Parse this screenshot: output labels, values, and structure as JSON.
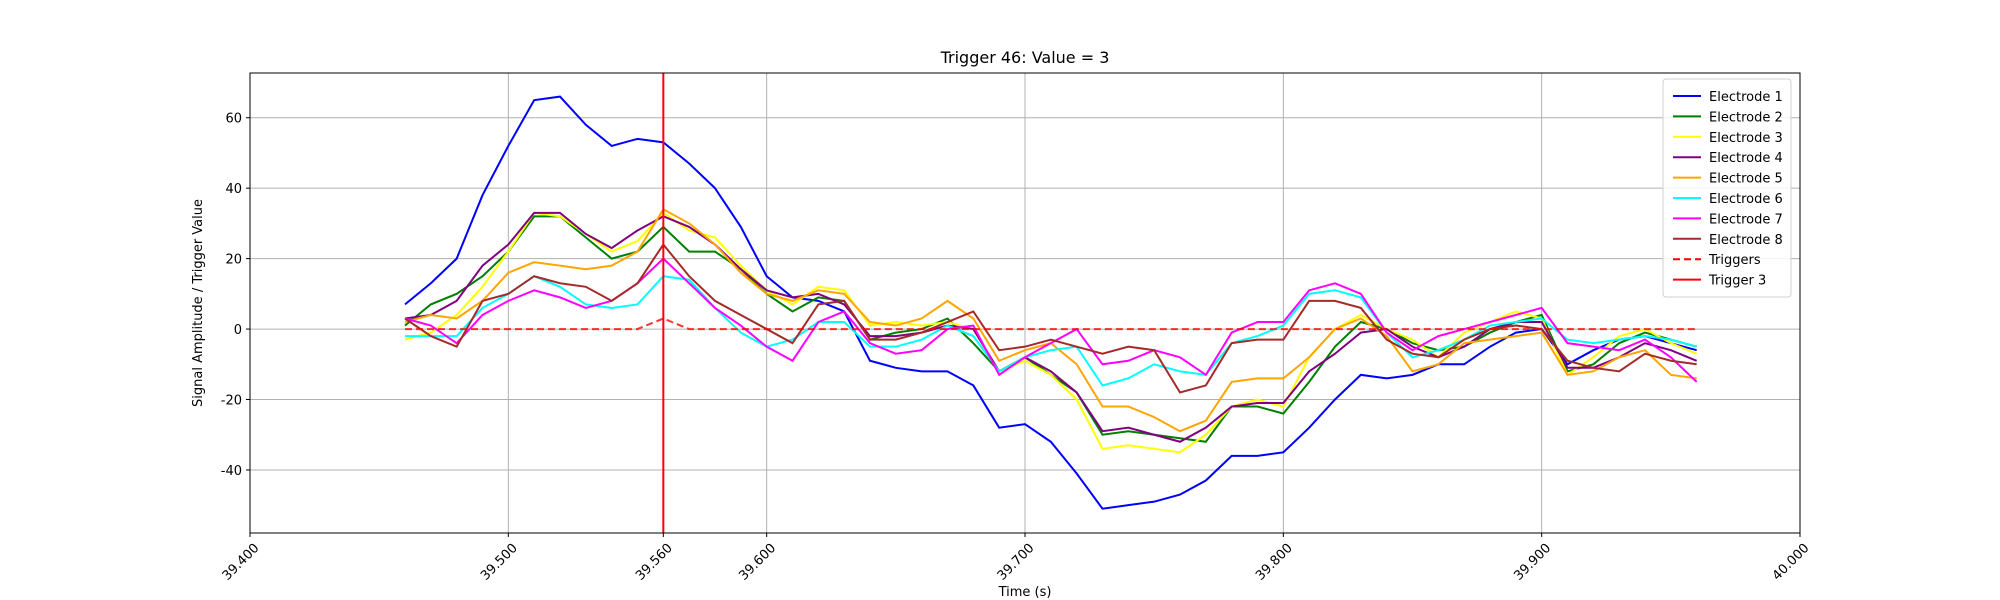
{
  "chart_data": {
    "type": "line",
    "title": "Trigger 46: Value = 3",
    "xlabel": "Time (s)",
    "ylabel": "Signal Amplitude / Trigger Value",
    "x": [
      39.46,
      39.47,
      39.48,
      39.49,
      39.5,
      39.51,
      39.52,
      39.53,
      39.54,
      39.55,
      39.56,
      39.57,
      39.58,
      39.59,
      39.6,
      39.61,
      39.62,
      39.63,
      39.64,
      39.65,
      39.66,
      39.67,
      39.68,
      39.69,
      39.7,
      39.71,
      39.72,
      39.73,
      39.74,
      39.75,
      39.76,
      39.77,
      39.78,
      39.79,
      39.8,
      39.81,
      39.82,
      39.83,
      39.84,
      39.85,
      39.86,
      39.87,
      39.88,
      39.89,
      39.9,
      39.91,
      39.92,
      39.93,
      39.94,
      39.95,
      39.96
    ],
    "series": [
      {
        "name": "Electrode 1",
        "color": "#0000ff",
        "values": [
          7,
          13,
          20,
          38,
          52,
          65,
          66,
          58,
          52,
          54,
          53,
          47,
          40,
          29,
          15,
          9,
          8,
          5,
          -9,
          -11,
          -12,
          -12,
          -16,
          -28,
          -27,
          -32,
          -41,
          -51,
          -50,
          -49,
          -47,
          -43,
          -36,
          -36,
          -35,
          -28,
          -20,
          -13,
          -14,
          -13,
          -10,
          -10,
          -5,
          -1,
          0,
          -10,
          -6,
          -3,
          -2,
          -4,
          -6
        ]
      },
      {
        "name": "Electrode 2",
        "color": "#008000",
        "values": [
          1,
          7,
          10,
          15,
          22,
          32,
          32,
          26,
          20,
          22,
          29,
          22,
          22,
          17,
          10,
          5,
          9,
          8,
          -3,
          -1,
          0,
          3,
          -4,
          -12,
          -8,
          -13,
          -18,
          -30,
          -29,
          -30,
          -31,
          -32,
          -22,
          -22,
          -24,
          -15,
          -5,
          2,
          0,
          -4,
          -6,
          -5,
          -1,
          2,
          4,
          -12,
          -10,
          -4,
          -1,
          -3,
          -5
        ]
      },
      {
        "name": "Electrode 3",
        "color": "#ffff00",
        "values": [
          -3,
          -1,
          4,
          12,
          22,
          33,
          32,
          27,
          22,
          25,
          33,
          28,
          26,
          18,
          11,
          7,
          12,
          11,
          1,
          2,
          1,
          2,
          0,
          -12,
          -9,
          -13,
          -20,
          -34,
          -33,
          -34,
          -35,
          -30,
          -22,
          -20,
          -22,
          -8,
          0,
          4,
          0,
          -3,
          -8,
          -1,
          2,
          5,
          3,
          -13,
          -8,
          -2,
          0,
          -4,
          -7
        ]
      },
      {
        "name": "Electrode 4",
        "color": "#800080",
        "values": [
          3,
          4,
          8,
          18,
          24,
          33,
          33,
          27,
          23,
          28,
          32,
          29,
          24,
          17,
          11,
          9,
          10,
          7,
          -2,
          -2,
          -1,
          1,
          0,
          -12,
          -8,
          -12,
          -18,
          -29,
          -28,
          -30,
          -32,
          -28,
          -22,
          -21,
          -21,
          -12,
          -7,
          -1,
          0,
          -5,
          -8,
          -5,
          0,
          2,
          2,
          -11,
          -11,
          -8,
          -4,
          -6,
          -9
        ]
      },
      {
        "name": "Electrode 5",
        "color": "#ffa500",
        "values": [
          2,
          4,
          3,
          8,
          16,
          19,
          18,
          17,
          18,
          22,
          34,
          30,
          24,
          16,
          10,
          8,
          11,
          10,
          2,
          1,
          3,
          8,
          3,
          -9,
          -6,
          -4,
          -10,
          -22,
          -22,
          -25,
          -29,
          -26,
          -15,
          -14,
          -14,
          -8,
          0,
          3,
          -2,
          -12,
          -10,
          -4,
          -3,
          -2,
          -1,
          -13,
          -12,
          -8,
          -6,
          -13,
          -14
        ]
      },
      {
        "name": "Electrode 6",
        "color": "#00ffff",
        "values": [
          -2,
          -2,
          -2,
          6,
          10,
          15,
          12,
          7,
          6,
          7,
          15,
          14,
          6,
          -1,
          -5,
          -3,
          2,
          2,
          -5,
          -5,
          -3,
          1,
          -2,
          -12,
          -8,
          -6,
          -5,
          -16,
          -14,
          -10,
          -12,
          -13,
          -4,
          -2,
          1,
          10,
          11,
          9,
          -1,
          -8,
          -6,
          -3,
          1,
          2,
          3,
          -3,
          -4,
          -3,
          -2,
          -3,
          -5
        ]
      },
      {
        "name": "Electrode 7",
        "color": "#ff00ff",
        "values": [
          3,
          1,
          -4,
          4,
          8,
          11,
          9,
          6,
          8,
          13,
          20,
          13,
          6,
          1,
          -5,
          -9,
          2,
          5,
          -4,
          -7,
          -6,
          0,
          1,
          -13,
          -8,
          -4,
          0,
          -10,
          -9,
          -6,
          -8,
          -13,
          -1,
          2,
          2,
          11,
          13,
          10,
          -1,
          -6,
          -2,
          0,
          2,
          4,
          6,
          -4,
          -5,
          -6,
          -3,
          -8,
          -15
        ]
      },
      {
        "name": "Electrode 8",
        "color": "#a52a2a",
        "values": [
          3,
          -2,
          -5,
          8,
          10,
          15,
          13,
          12,
          8,
          13,
          24,
          15,
          8,
          4,
          0,
          -4,
          7,
          8,
          -3,
          -3,
          -1,
          2,
          5,
          -6,
          -5,
          -3,
          -5,
          -7,
          -5,
          -6,
          -18,
          -16,
          -4,
          -3,
          -3,
          8,
          8,
          6,
          -3,
          -7,
          -8,
          -3,
          0,
          1,
          0,
          -9,
          -11,
          -12,
          -7,
          -9,
          -10
        ]
      },
      {
        "name": "Triggers",
        "color": "#ff0000",
        "dash": true,
        "values": [
          0,
          0,
          0,
          0,
          0,
          0,
          0,
          0,
          0,
          0,
          3,
          0,
          0,
          0,
          0,
          0,
          0,
          0,
          0,
          0,
          0,
          0,
          0,
          0,
          0,
          0,
          0,
          0,
          0,
          0,
          0,
          0,
          0,
          0,
          0,
          0,
          0,
          0,
          0,
          0,
          0,
          0,
          0,
          0,
          0,
          0,
          0,
          0,
          0,
          0,
          0
        ]
      }
    ],
    "vlines": [
      {
        "name": "Trigger 3",
        "x": 39.56,
        "color": "#ff0000"
      }
    ],
    "xlim": [
      39.4,
      40.0
    ],
    "xticks": [
      {
        "value": 39.4,
        "label": "39.400"
      },
      {
        "value": 39.5,
        "label": "39.500"
      },
      {
        "value": 39.56,
        "label": "39.560"
      },
      {
        "value": 39.6,
        "label": "39.600"
      },
      {
        "value": 39.7,
        "label": "39.700"
      },
      {
        "value": 39.8,
        "label": "39.800"
      },
      {
        "value": 39.9,
        "label": "39.900"
      },
      {
        "value": 40.0,
        "label": "40.000"
      }
    ],
    "ylim": [
      -57.9,
      72.7
    ],
    "yticks": [
      -40,
      -20,
      0,
      20,
      40,
      60
    ],
    "grid": true,
    "legend": "upper right"
  }
}
